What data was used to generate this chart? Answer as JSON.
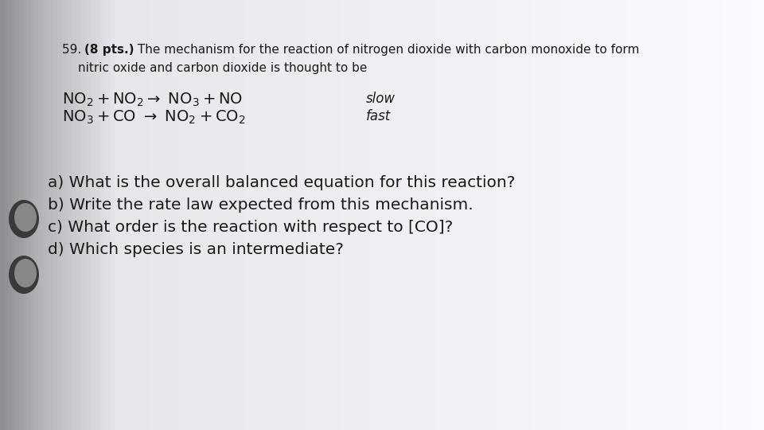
{
  "text_color": "#1a1a1a",
  "title_number": "59. ",
  "title_bold": "(8 pts.)",
  "title_rest": " The mechanism for the reaction of nitrogen dioxide with carbon monoxide to form",
  "title_line2": "     nitric oxide and carbon dioxide is thought to be",
  "rxn1": "$\\mathregular{NO_2 + NO_2 \\rightarrow  NO_3 + NO}$",
  "rxn2": "$\\mathregular{NO_3 + CO  \\rightarrow  NO_2 + CO_2}$",
  "rxn1_label": "slow",
  "rxn2_label": "fast",
  "qa": "a) What is the overall balanced equation for this reaction?",
  "qb": "b) Write the rate law expected from this mechanism.",
  "qc": "c) What order is the reaction with respect to [CO]?",
  "qd": "d) Which species is an intermediate?",
  "page_color_left": "#d8d8de",
  "page_color_right": "#f0f0f3",
  "spiral_color": "#666666",
  "spiral_highlight": "#999999"
}
